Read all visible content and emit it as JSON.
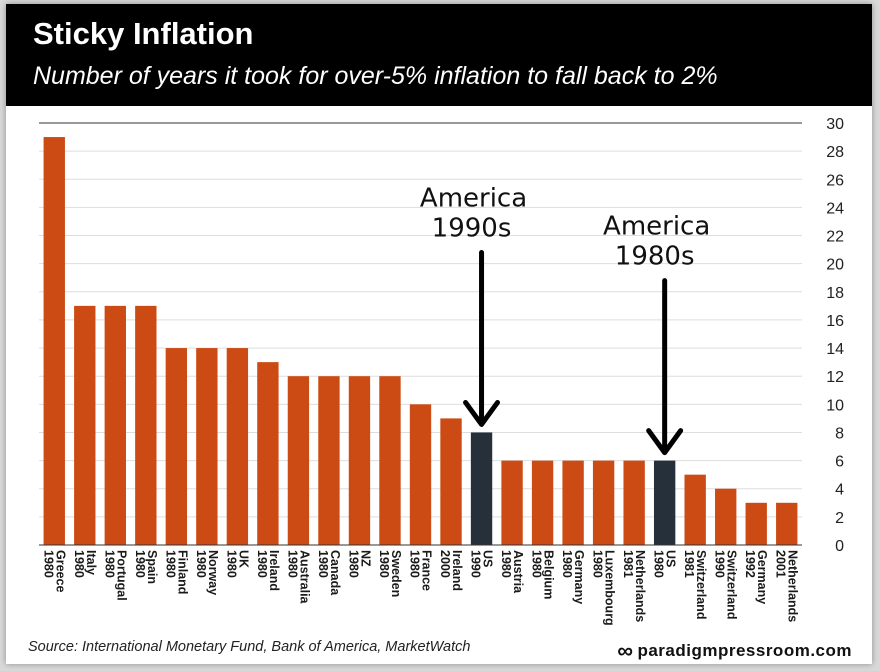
{
  "header": {
    "title": "Sticky Inflation",
    "subtitle": "Number of years it took for over-5% inflation to fall back to 2%"
  },
  "footer": {
    "source": "Source: International Monetary Fund, Bank of America, MarketWatch",
    "brand": "paradigmpressroom.com",
    "brand_logo_icon": "infinity-icon"
  },
  "colors": {
    "bar": "#cc4b14",
    "highlight": "#26303b",
    "grid": "#dddddd",
    "axis": "#333333"
  },
  "chart_data": {
    "type": "bar",
    "title": "Sticky Inflation",
    "subtitle": "Number of years it took for over-5% inflation to fall back to 2%",
    "xlabel": "",
    "ylabel": "",
    "ylim": [
      0,
      30
    ],
    "yticks": [
      0,
      2,
      4,
      6,
      8,
      10,
      12,
      14,
      16,
      18,
      20,
      22,
      24,
      26,
      28,
      30
    ],
    "yaxis_position": "right",
    "grid": true,
    "categories": [
      {
        "country": "Greece",
        "year": "1980"
      },
      {
        "country": "Italy",
        "year": "1980"
      },
      {
        "country": "Portugal",
        "year": "1980"
      },
      {
        "country": "Spain",
        "year": "1980"
      },
      {
        "country": "Finland",
        "year": "1980"
      },
      {
        "country": "Norway",
        "year": "1980"
      },
      {
        "country": "UK",
        "year": "1980"
      },
      {
        "country": "Ireland",
        "year": "1980"
      },
      {
        "country": "Australia",
        "year": "1980"
      },
      {
        "country": "Canada",
        "year": "1980"
      },
      {
        "country": "NZ",
        "year": "1980"
      },
      {
        "country": "Sweden",
        "year": "1980"
      },
      {
        "country": "France",
        "year": "1980"
      },
      {
        "country": "Ireland",
        "year": "2000"
      },
      {
        "country": "US",
        "year": "1990"
      },
      {
        "country": "Austria",
        "year": "1980"
      },
      {
        "country": "Belgium",
        "year": "1980"
      },
      {
        "country": "Germany",
        "year": "1980"
      },
      {
        "country": "Luxembourg",
        "year": "1980"
      },
      {
        "country": "Netherlands",
        "year": "1981"
      },
      {
        "country": "US",
        "year": "1980"
      },
      {
        "country": "Switzerland",
        "year": "1981"
      },
      {
        "country": "Switzerland",
        "year": "1990"
      },
      {
        "country": "Germany",
        "year": "1992"
      },
      {
        "country": "Netherlands",
        "year": "2001"
      }
    ],
    "values": [
      29,
      17,
      17,
      17,
      14,
      14,
      14,
      13,
      12,
      12,
      12,
      12,
      10,
      9,
      8,
      6,
      6,
      6,
      6,
      6,
      6,
      5,
      4,
      3,
      3
    ],
    "highlighted_indices": [
      14,
      20
    ],
    "annotations": [
      {
        "line1": "America",
        "line2": "1990s",
        "target_index": 14
      },
      {
        "line1": "America",
        "line2": "1980s",
        "target_index": 20
      }
    ]
  }
}
